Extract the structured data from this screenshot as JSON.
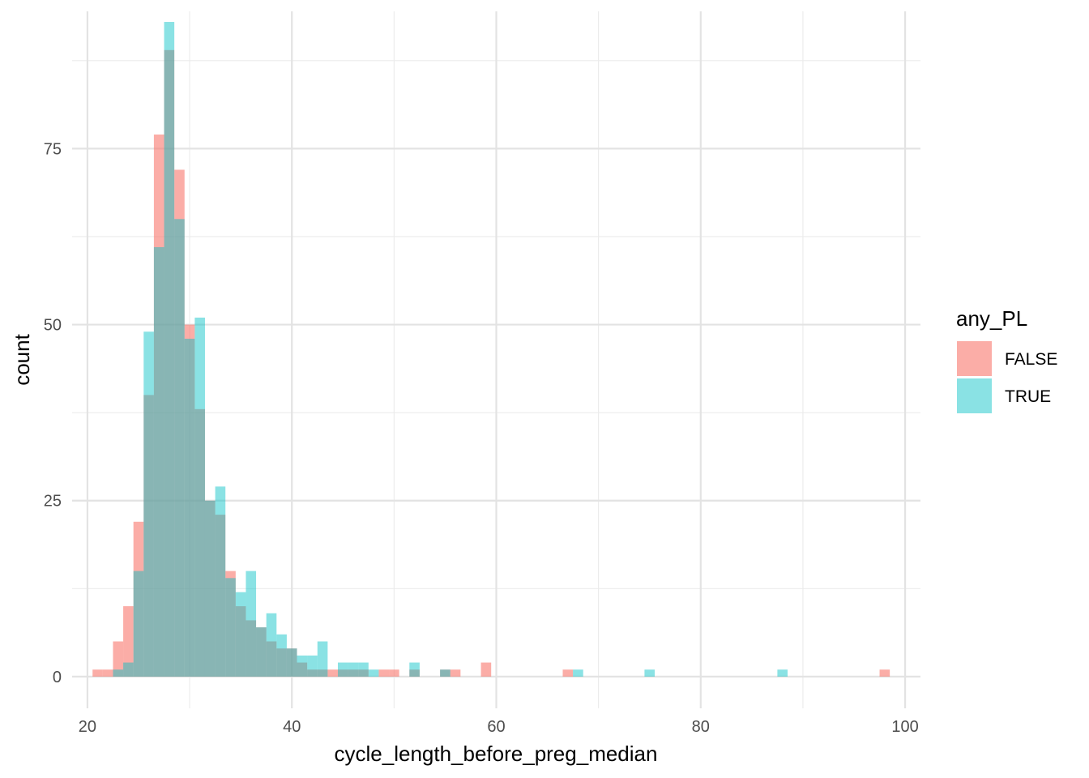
{
  "chart_data": {
    "type": "histogram",
    "title": "",
    "xlabel": "cycle_length_before_preg_median",
    "ylabel": "count",
    "xlim": [
      18.5,
      101.5
    ],
    "ylim": [
      -4.5,
      94.5
    ],
    "x_ticks": [
      20,
      40,
      60,
      80,
      100
    ],
    "y_ticks": [
      0,
      25,
      50,
      75
    ],
    "bin_width": 1,
    "grid": true,
    "legend": {
      "title": "any_PL",
      "position": "right",
      "entries": [
        {
          "label": "FALSE",
          "color": "#F8766D"
        },
        {
          "label": "TRUE",
          "color": "#00BFC4"
        }
      ]
    },
    "series": [
      {
        "name": "FALSE",
        "color": "#F8766D",
        "bins": [
          [
            21,
            1
          ],
          [
            22,
            1
          ],
          [
            23,
            5
          ],
          [
            24,
            10
          ],
          [
            25,
            22
          ],
          [
            26,
            40
          ],
          [
            27,
            77
          ],
          [
            28,
            89
          ],
          [
            29,
            72
          ],
          [
            30,
            50
          ],
          [
            31,
            38
          ],
          [
            32,
            25
          ],
          [
            33,
            23
          ],
          [
            34,
            15
          ],
          [
            35,
            10
          ],
          [
            36,
            8
          ],
          [
            37,
            7
          ],
          [
            38,
            5
          ],
          [
            39,
            4
          ],
          [
            40,
            4
          ],
          [
            41,
            2
          ],
          [
            42,
            1
          ],
          [
            43,
            1
          ],
          [
            44,
            1
          ],
          [
            45,
            1
          ],
          [
            46,
            1
          ],
          [
            47,
            1
          ],
          [
            48,
            0
          ],
          [
            49,
            1
          ],
          [
            50,
            1
          ],
          [
            52,
            1
          ],
          [
            55,
            1
          ],
          [
            56,
            1
          ],
          [
            59,
            2
          ],
          [
            67,
            1
          ],
          [
            98,
            1
          ]
        ]
      },
      {
        "name": "TRUE",
        "color": "#00BFC4",
        "bins": [
          [
            23,
            1
          ],
          [
            24,
            2
          ],
          [
            25,
            15
          ],
          [
            26,
            49
          ],
          [
            27,
            61
          ],
          [
            28,
            93
          ],
          [
            29,
            65
          ],
          [
            30,
            48
          ],
          [
            31,
            51
          ],
          [
            32,
            25
          ],
          [
            33,
            27
          ],
          [
            34,
            14
          ],
          [
            35,
            12
          ],
          [
            36,
            15
          ],
          [
            37,
            7
          ],
          [
            38,
            9
          ],
          [
            39,
            6
          ],
          [
            40,
            4
          ],
          [
            41,
            3
          ],
          [
            42,
            3
          ],
          [
            43,
            5
          ],
          [
            44,
            0
          ],
          [
            45,
            2
          ],
          [
            46,
            2
          ],
          [
            47,
            2
          ],
          [
            48,
            1
          ],
          [
            52,
            2
          ],
          [
            55,
            1
          ],
          [
            68,
            1
          ],
          [
            75,
            1
          ],
          [
            88,
            1
          ]
        ]
      }
    ]
  }
}
